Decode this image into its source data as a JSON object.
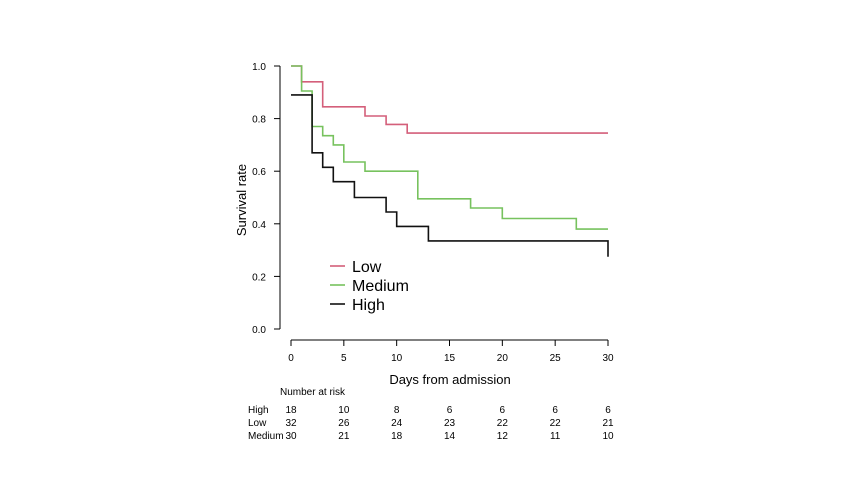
{
  "chart_data": {
    "type": "line",
    "subtype": "kaplan-meier",
    "title": "",
    "xlabel": "Days from admission",
    "ylabel": "Survival rate",
    "xlim": [
      0,
      30
    ],
    "ylim": [
      0,
      1
    ],
    "xticks": [
      0,
      5,
      10,
      15,
      20,
      25,
      30
    ],
    "yticks": [
      0.0,
      0.2,
      0.4,
      0.6,
      0.8,
      1.0
    ],
    "xtick_labels": [
      "0",
      "5",
      "10",
      "15",
      "20",
      "25",
      "30"
    ],
    "ytick_labels": [
      "0.0",
      "0.2",
      "0.4",
      "0.6",
      "0.8",
      "1.0"
    ],
    "legend_position": "lower-left",
    "series": [
      {
        "name": "Low",
        "color": "#d45f7a",
        "steps": [
          [
            0,
            1.0
          ],
          [
            1,
            0.94
          ],
          [
            3,
            0.845
          ],
          [
            7,
            0.81
          ],
          [
            9,
            0.778
          ],
          [
            11,
            0.745
          ],
          [
            30,
            0.745
          ]
        ]
      },
      {
        "name": "Medium",
        "color": "#77c25e",
        "steps": [
          [
            0,
            1.0
          ],
          [
            1,
            0.905
          ],
          [
            2,
            0.77
          ],
          [
            3,
            0.735
          ],
          [
            4,
            0.7
          ],
          [
            5,
            0.635
          ],
          [
            7,
            0.6
          ],
          [
            12,
            0.495
          ],
          [
            17,
            0.46
          ],
          [
            20,
            0.42
          ],
          [
            27,
            0.38
          ],
          [
            30,
            0.38
          ]
        ]
      },
      {
        "name": "High",
        "color": "#111111",
        "steps": [
          [
            0,
            0.89
          ],
          [
            1,
            0.89
          ],
          [
            2,
            0.67
          ],
          [
            3,
            0.615
          ],
          [
            4,
            0.56
          ],
          [
            6,
            0.5
          ],
          [
            9,
            0.445
          ],
          [
            10,
            0.39
          ],
          [
            13,
            0.335
          ],
          [
            30,
            0.335
          ],
          [
            30,
            0.275
          ]
        ]
      }
    ],
    "risk_table": {
      "title": "Number at risk",
      "times": [
        0,
        5,
        10,
        15,
        20,
        25,
        30
      ],
      "rows": [
        {
          "label": "High",
          "values": [
            "18",
            "10",
            "8",
            "6",
            "6",
            "6",
            "6"
          ]
        },
        {
          "label": "Low",
          "values": [
            "32",
            "26",
            "24",
            "23",
            "22",
            "22",
            "21"
          ]
        },
        {
          "label": "Medium",
          "values": [
            "30",
            "21",
            "18",
            "14",
            "12",
            "11",
            "10"
          ]
        }
      ]
    }
  }
}
